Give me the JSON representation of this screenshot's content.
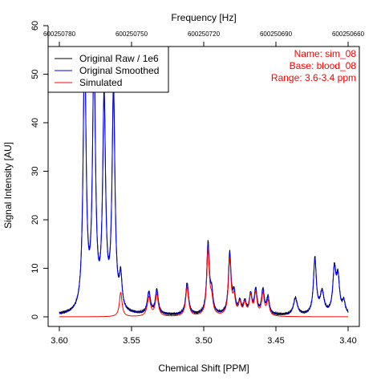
{
  "chart_data": {
    "type": "line",
    "xlabel": "Chemical Shift [PPM]",
    "ylabel": "Signal Intensity [AU]",
    "top_xlabel": "Frequency [Hz]",
    "xlim": [
      3.6,
      3.4
    ],
    "ylim": [
      -2,
      65
    ],
    "x_ticks": [
      3.6,
      3.55,
      3.5,
      3.45,
      3.4
    ],
    "x_tick_labels": [
      "3.60",
      "3.55",
      "3.50",
      "3.45",
      "3.40"
    ],
    "y_ticks": [
      0,
      10,
      20,
      30,
      40,
      50,
      60
    ],
    "y_tick_labels": [
      "0",
      "10",
      "20",
      "30",
      "40",
      "50",
      "60"
    ],
    "top_ticks": [
      600250780,
      600250750,
      600250720,
      600250690,
      600250660
    ],
    "top_tick_labels": [
      "600250780",
      "600250750",
      "600250720",
      "600250690",
      "600250660"
    ],
    "legend": {
      "position": "top-left",
      "entries": [
        {
          "label": "Original Raw / 1e6",
          "color": "#000000"
        },
        {
          "label": "Original Smoothed",
          "color": "#0000ff"
        },
        {
          "label": "Simulated",
          "color": "#ff0000"
        }
      ]
    },
    "info": {
      "color": "#ff0000",
      "lines": [
        "Name: sim_08",
        "Base: blood_08",
        "Range: 3.6-3.4 ppm"
      ]
    },
    "peaks": [
      {
        "ppm": 3.5825,
        "height": 56,
        "width": 0.0012,
        "sim": 0
      },
      {
        "ppm": 3.576,
        "height": 53,
        "width": 0.0012,
        "sim": 0
      },
      {
        "ppm": 3.569,
        "height": 43.5,
        "width": 0.0012,
        "sim": 0
      },
      {
        "ppm": 3.5625,
        "height": 46,
        "width": 0.0012,
        "sim": 0
      },
      {
        "ppm": 3.5575,
        "height": 6.5,
        "width": 0.0011,
        "sim": 5
      },
      {
        "ppm": 3.538,
        "height": 4.5,
        "width": 0.0013,
        "sim": 4
      },
      {
        "ppm": 3.5325,
        "height": 5,
        "width": 0.0012,
        "sim": 4.5
      },
      {
        "ppm": 3.5115,
        "height": 6.5,
        "width": 0.0012,
        "sim": 6
      },
      {
        "ppm": 3.497,
        "height": 14.5,
        "width": 0.0011,
        "sim": 13.5
      },
      {
        "ppm": 3.4945,
        "height": 4,
        "width": 0.0011,
        "sim": 3
      },
      {
        "ppm": 3.482,
        "height": 12.5,
        "width": 0.0011,
        "sim": 11.5
      },
      {
        "ppm": 3.479,
        "height": 4,
        "width": 0.0011,
        "sim": 3.5
      },
      {
        "ppm": 3.475,
        "height": 2.5,
        "width": 0.0011,
        "sim": 2.5
      },
      {
        "ppm": 3.4715,
        "height": 2.5,
        "width": 0.0011,
        "sim": 2.5
      },
      {
        "ppm": 3.4675,
        "height": 4,
        "width": 0.0011,
        "sim": 4
      },
      {
        "ppm": 3.464,
        "height": 5,
        "width": 0.0011,
        "sim": 4.5
      },
      {
        "ppm": 3.459,
        "height": 5,
        "width": 0.0011,
        "sim": 4.5
      },
      {
        "ppm": 3.4555,
        "height": 3.5,
        "width": 0.0011,
        "sim": 3
      },
      {
        "ppm": 3.4365,
        "height": 3.5,
        "width": 0.0016,
        "sim": 0
      },
      {
        "ppm": 3.423,
        "height": 11.5,
        "width": 0.0012,
        "sim": 0
      },
      {
        "ppm": 3.418,
        "height": 4.5,
        "width": 0.0016,
        "sim": 0
      },
      {
        "ppm": 3.4095,
        "height": 9,
        "width": 0.0013,
        "sim": 0
      },
      {
        "ppm": 3.407,
        "height": 7,
        "width": 0.0013,
        "sim": 0
      },
      {
        "ppm": 3.403,
        "height": 2.5,
        "width": 0.0012,
        "sim": 0
      }
    ]
  }
}
